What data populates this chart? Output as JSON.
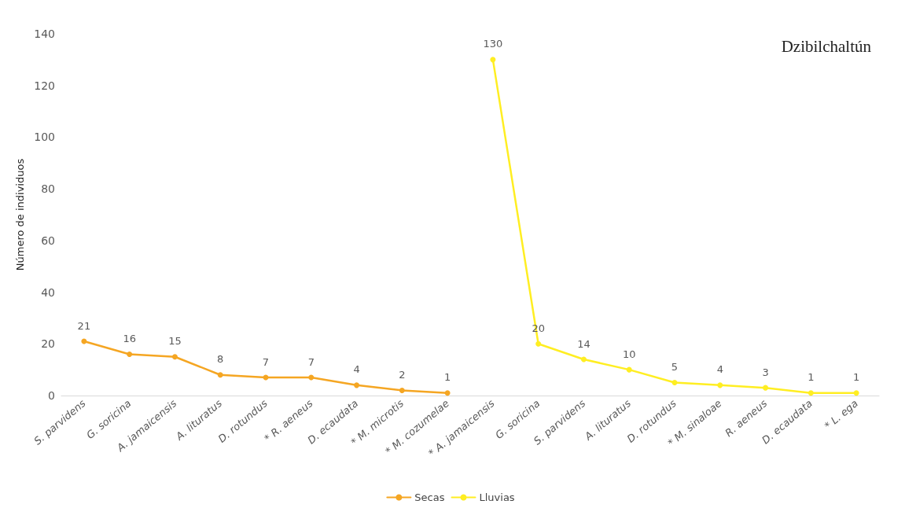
{
  "chart_data": {
    "type": "line",
    "ylabel": "Número de individuos",
    "categories": [
      "S. parvidens",
      "G. soricina",
      "A. jamaicensis",
      "A. lituratus",
      "D. rotundus",
      "* R. aeneus",
      "D. ecaudata",
      "* M. microtis",
      "* M. cozumelae",
      "* A. jamaicensis",
      "G. soricina",
      "S. parvidens",
      "A. lituratus",
      "D. rotundus",
      "* M. sinaloae",
      "R. aeneus",
      "D. ecaudata",
      "* L. ega"
    ],
    "series": [
      {
        "name": "Secas",
        "color": "#f5a623",
        "values": [
          21,
          16,
          15,
          8,
          7,
          7,
          4,
          2,
          1,
          null,
          null,
          null,
          null,
          null,
          null,
          null,
          null,
          null
        ]
      },
      {
        "name": "Lluvias",
        "color": "#ffee22",
        "values": [
          null,
          null,
          null,
          null,
          null,
          null,
          null,
          null,
          null,
          130,
          20,
          14,
          10,
          5,
          4,
          3,
          1,
          1
        ]
      }
    ],
    "ylim": [
      0,
      140
    ],
    "yticks": [
      0,
      20,
      40,
      60,
      80,
      100,
      120,
      140
    ],
    "grid": false,
    "legend": "bottom",
    "marker": "circle",
    "line_style": "solid",
    "data_labels": true,
    "annotations": [
      "Dzibilchaltún"
    ]
  }
}
